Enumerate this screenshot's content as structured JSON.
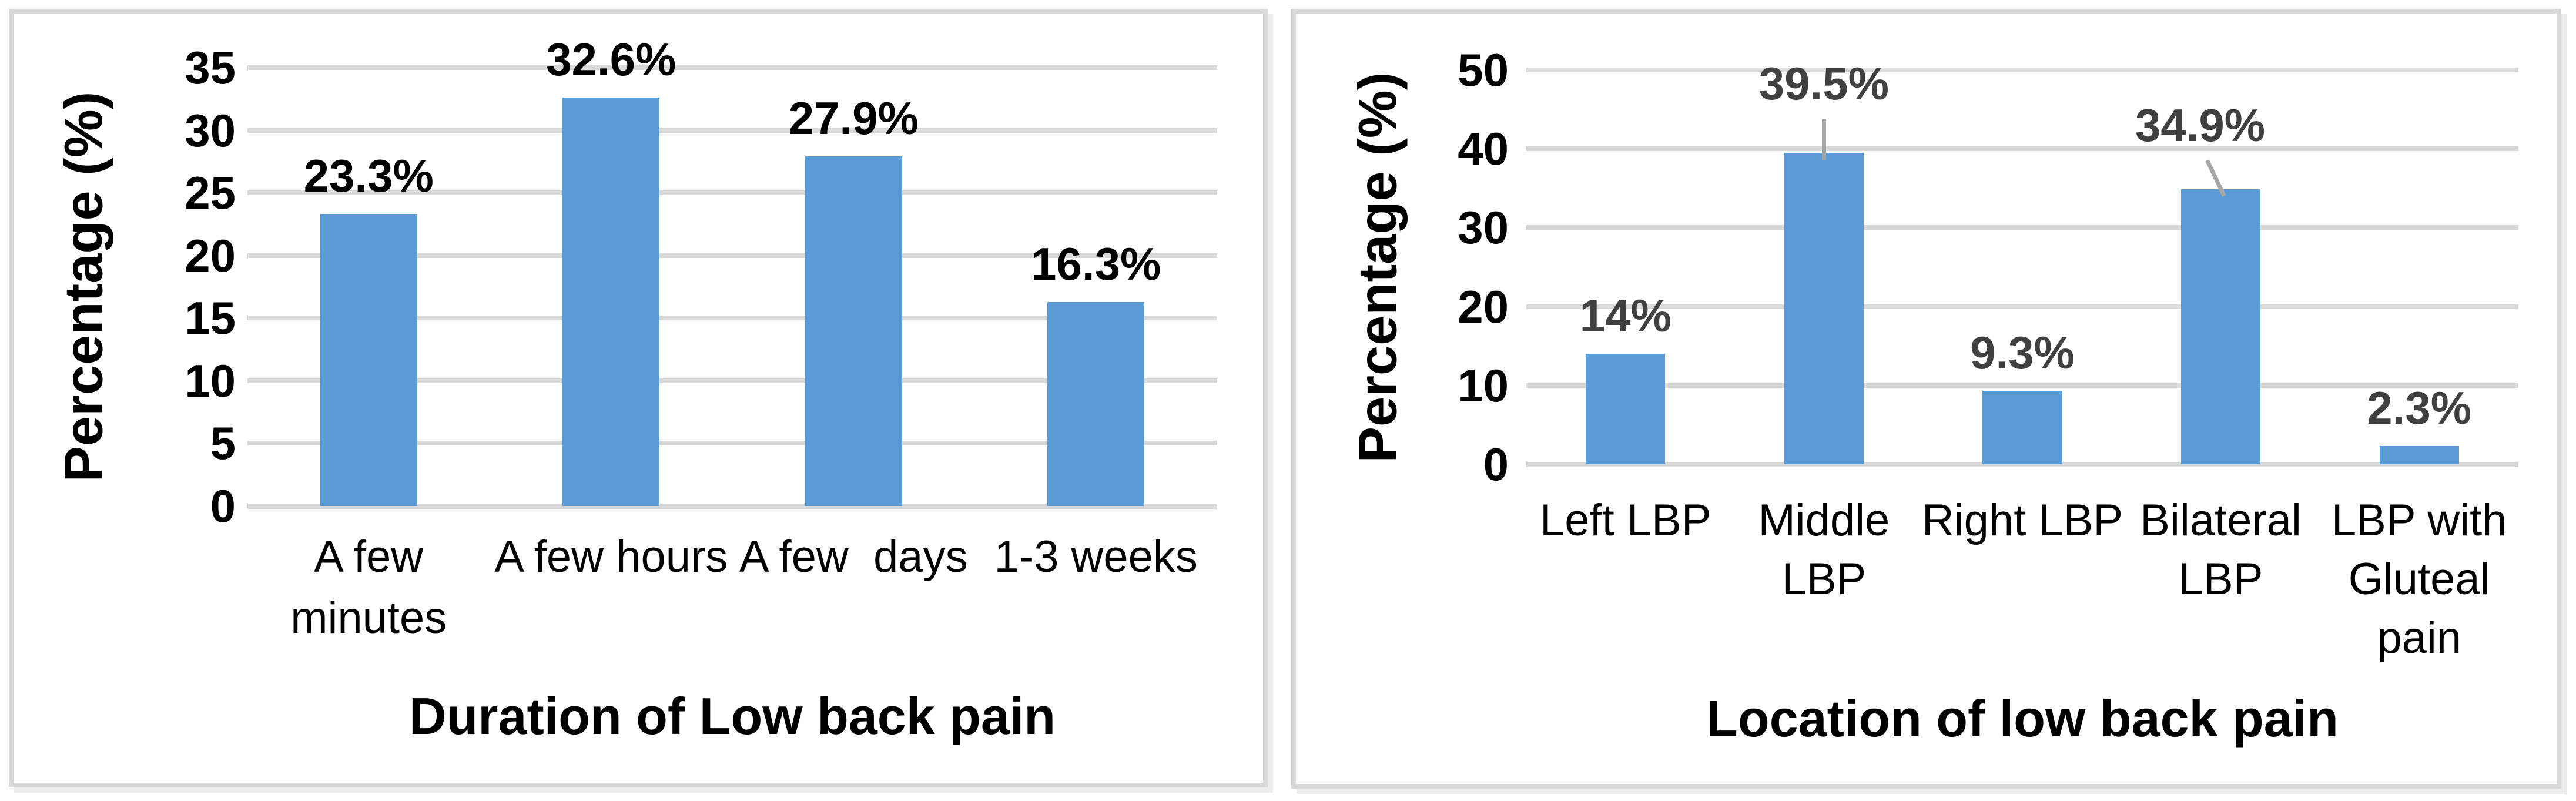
{
  "figure": {
    "background": "#FFFFFF",
    "panel_border_color": "#D9D9D9",
    "gridline_color": "#D9D9D9"
  },
  "chart_data": [
    {
      "id": "duration",
      "type": "bar",
      "title": "Duration of Low back pain",
      "ylabel": "Percentage (%)",
      "xlabel": "",
      "ylim": [
        0,
        35
      ],
      "ystep": 5,
      "yticks": [
        0,
        5,
        10,
        15,
        20,
        25,
        30,
        35
      ],
      "grid": true,
      "legend": "none",
      "bar_color": "#5B9BD5",
      "data_label_color": "#000000",
      "categories": [
        "A few minutes",
        "A few hours",
        "A few  days",
        "1-3 weeks"
      ],
      "category_lines": [
        [
          "A few",
          "minutes"
        ],
        [
          "A few hours"
        ],
        [
          "A few  days"
        ],
        [
          "1-3 weeks"
        ]
      ],
      "values": [
        23.3,
        32.6,
        27.9,
        16.3
      ],
      "data_labels": [
        "23.3%",
        "32.6%",
        "27.9%",
        "16.3%"
      ],
      "callouts": []
    },
    {
      "id": "location",
      "type": "bar",
      "title": "Location of low back pain",
      "ylabel": "Percentage (%)",
      "xlabel": "",
      "ylim": [
        0,
        50
      ],
      "ystep": 10,
      "yticks": [
        0,
        10,
        20,
        30,
        40,
        50
      ],
      "grid": true,
      "legend": "none",
      "bar_color": "#5B9BD5",
      "data_label_color": "#404040",
      "leader_color": "#A6A6A6",
      "categories": [
        "Left LBP",
        "Middle LBP",
        "Right LBP",
        "Bilateral LBP",
        "LBP with Gluteal pain"
      ],
      "category_lines": [
        [
          "Left LBP"
        ],
        [
          "Middle",
          "LBP"
        ],
        [
          "Right LBP"
        ],
        [
          "Bilateral",
          "LBP"
        ],
        [
          "LBP with",
          "Gluteal",
          "pain"
        ]
      ],
      "values": [
        14,
        39.5,
        9.3,
        34.9,
        2.3
      ],
      "data_labels": [
        "14%",
        "39.5%",
        "9.3%",
        "34.9%",
        "2.3%"
      ],
      "callouts": [
        {
          "index": 1,
          "label_at": 48.3,
          "dx": 0,
          "leader": true
        },
        {
          "index": 3,
          "label_at": 43.0,
          "dx": -35,
          "leader": true
        }
      ]
    }
  ]
}
